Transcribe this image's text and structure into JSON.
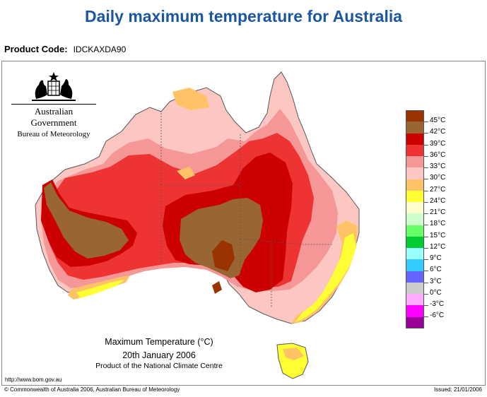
{
  "header": {
    "title": "Daily maximum temperature for Australia",
    "product_code_label": "Product Code:",
    "product_code": "IDCKAXDA90"
  },
  "logo": {
    "government": "Australian Government",
    "bureau": "Bureau of Meteorology",
    "crest_icon": "commonwealth-coat-of-arms-icon"
  },
  "map": {
    "caption_title": "Maximum Temperature (°C)",
    "caption_date": "20th January 2006",
    "caption_product": "Product of the National Climate Centre",
    "region": "Australia"
  },
  "legend": {
    "items": [
      {
        "label": "45°C",
        "color": "#993300"
      },
      {
        "label": "42°C",
        "color": "#996633"
      },
      {
        "label": "39°C",
        "color": "#cc0000"
      },
      {
        "label": "36°C",
        "color": "#ee3333"
      },
      {
        "label": "33°C",
        "color": "#f59797"
      },
      {
        "label": "30°C",
        "color": "#fcc7c3"
      },
      {
        "label": "27°C",
        "color": "#ffc266"
      },
      {
        "label": "24°C",
        "color": "#ffff33"
      },
      {
        "label": "21°C",
        "color": "#ffffcc"
      },
      {
        "label": "18°C",
        "color": "#ccffcc"
      },
      {
        "label": "15°C",
        "color": "#66ff66"
      },
      {
        "label": "12°C",
        "color": "#00cc33"
      },
      {
        "label": "9°C",
        "color": "#99ffff"
      },
      {
        "label": "6°C",
        "color": "#33ccff"
      },
      {
        "label": "3°C",
        "color": "#6666ff"
      },
      {
        "label": "0°C",
        "color": "#cccccc"
      },
      {
        "label": "-3°C",
        "color": "#ffaaff"
      },
      {
        "label": "-6°C",
        "color": "#ff00ff"
      },
      {
        "label": "",
        "color": "#990099"
      }
    ]
  },
  "footer": {
    "url": "http://www.bom.gov.au",
    "copyright": "© Commonwealth of Australia 2006, Australian Bureau of Meteorology",
    "issued": "Issued: 21/01/2006"
  }
}
